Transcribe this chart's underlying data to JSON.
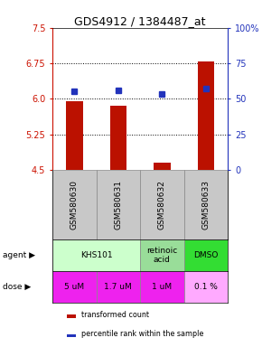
{
  "title": "GDS4912 / 1384487_at",
  "samples": [
    "GSM580630",
    "GSM580631",
    "GSM580632",
    "GSM580633"
  ],
  "bar_values": [
    5.95,
    5.85,
    4.65,
    6.78
  ],
  "bar_color": "#bb1100",
  "dot_values": [
    6.15,
    6.17,
    6.1,
    6.22
  ],
  "dot_color": "#2233bb",
  "ylim": [
    4.5,
    7.5
  ],
  "yticks_left": [
    4.5,
    5.25,
    6.0,
    6.75,
    7.5
  ],
  "yticks_right": [
    0,
    25,
    50,
    75,
    100
  ],
  "yticklabels_right": [
    "0",
    "25",
    "50",
    "75",
    "100%"
  ],
  "hlines": [
    5.25,
    6.0,
    6.75
  ],
  "sample_bg": "#c8c8c8",
  "agent_groups": [
    {
      "start": 0,
      "end": 1,
      "text": "KHS101",
      "color": "#ccffcc"
    },
    {
      "start": 2,
      "end": 2,
      "text": "retinoic\nacid",
      "color": "#99dd99"
    },
    {
      "start": 3,
      "end": 3,
      "text": "DMSO",
      "color": "#33dd33"
    }
  ],
  "dose_labels": [
    "5 uM",
    "1.7 uM",
    "1 uM",
    "0.1 %"
  ],
  "dose_colors": [
    "#ee22ee",
    "#ee22ee",
    "#ee22ee",
    "#ffaaff"
  ],
  "legend_red": "transformed count",
  "legend_blue": "percentile rank within the sample",
  "bar_bottom": 4.5
}
